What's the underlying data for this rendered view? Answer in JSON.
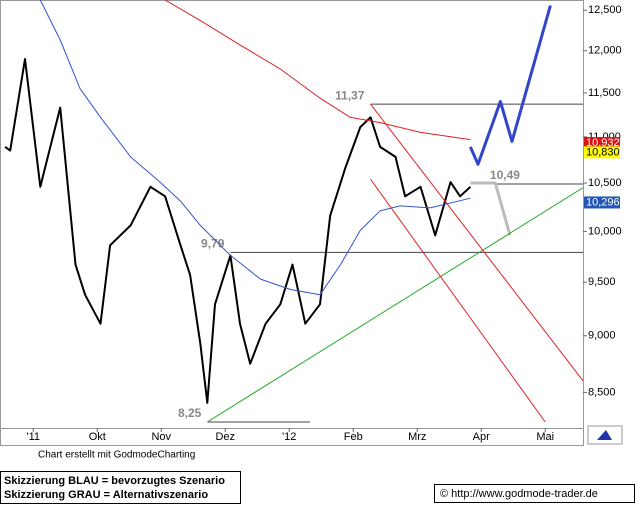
{
  "chart_data": {
    "type": "line",
    "log_y": true,
    "xlim": [
      -0.52,
      8.59
    ],
    "ylim": [
      8.2,
      12.63
    ],
    "xticks": [
      {
        "value": 0,
        "label": "'11"
      },
      {
        "value": 1,
        "label": "Okt"
      },
      {
        "value": 2,
        "label": "Nov"
      },
      {
        "value": 3,
        "label": "Dez"
      },
      {
        "value": 4,
        "label": "'12"
      },
      {
        "value": 5,
        "label": "Feb"
      },
      {
        "value": 6,
        "label": "Mrz"
      },
      {
        "value": 7,
        "label": "Apr"
      },
      {
        "value": 8,
        "label": "Mai"
      }
    ],
    "yticks": [
      {
        "value": 8.5,
        "label": "8,500"
      },
      {
        "value": 9,
        "label": "9,000"
      },
      {
        "value": 9.5,
        "label": "9,500"
      },
      {
        "value": 10,
        "label": "10,000"
      },
      {
        "value": 10.5,
        "label": "10,500"
      },
      {
        "value": 11,
        "label": "11,000"
      },
      {
        "value": 11.5,
        "label": "11,500"
      },
      {
        "value": 12,
        "label": "12,000"
      },
      {
        "value": 12.5,
        "label": "12,500"
      }
    ],
    "series": [
      {
        "color": "#000000",
        "width": 2,
        "x": [
          -0.44,
          -0.36,
          -0.13,
          0.11,
          0.42,
          0.66,
          0.81,
          1.05,
          1.2,
          1.52,
          1.83,
          2.06,
          2.3,
          2.45,
          2.61,
          2.72,
          2.84,
          3.08,
          3.23,
          3.39,
          3.63,
          3.86,
          4.05,
          4.25,
          4.48,
          4.64,
          4.88,
          5.11,
          5.27,
          5.42,
          5.66,
          5.81,
          6.05,
          6.28,
          6.52,
          6.67,
          6.83
        ],
        "values": [
          10.89,
          10.85,
          11.9,
          10.46,
          11.33,
          9.67,
          9.38,
          9.11,
          9.86,
          10.06,
          10.46,
          10.36,
          9.86,
          9.57,
          8.93,
          8.41,
          9.29,
          9.76,
          9.11,
          8.75,
          9.11,
          9.29,
          9.67,
          9.11,
          9.29,
          10.16,
          10.67,
          11.11,
          11.22,
          10.89,
          10.78,
          10.36,
          10.46,
          9.96,
          10.51,
          10.36,
          10.46
        ]
      },
      {
        "color": "#3355cc",
        "width": 1,
        "x": [
          0.11,
          0.42,
          0.73,
          1.05,
          1.52,
          1.98,
          2.3,
          2.61,
          3.08,
          3.55,
          4.02,
          4.48,
          4.8,
          5.11,
          5.42,
          5.73,
          6.2,
          6.83
        ],
        "values": [
          12.63,
          12.13,
          11.55,
          11.22,
          10.78,
          10.51,
          10.31,
          10.06,
          9.76,
          9.53,
          9.43,
          9.38,
          9.67,
          10.01,
          10.21,
          10.26,
          10.24,
          10.34
        ]
      },
      {
        "color": "#dd2222",
        "width": 1,
        "x": [
          2.06,
          2.61,
          3.23,
          3.86,
          4.48,
          4.95,
          5.42,
          6.05,
          6.83
        ],
        "values": [
          12.63,
          12.37,
          12.07,
          11.78,
          11.44,
          11.22,
          11.16,
          11.05,
          10.97
        ]
      },
      {
        "color": "#3344cc",
        "width": 3,
        "x": [
          6.83,
          6.95,
          7.3,
          7.48,
          8.08
        ],
        "values": [
          10.89,
          10.7,
          11.4,
          10.95,
          12.56
        ]
      },
      {
        "color": "#bbbbbb",
        "width": 3,
        "x": [
          6.83,
          7.22,
          7.45
        ],
        "values": [
          10.5,
          10.5,
          9.96
        ]
      },
      {
        "color": "#22aa22",
        "width": 1,
        "x": [
          2.72,
          8.59
        ],
        "values": [
          8.25,
          10.45
        ]
      },
      {
        "color": "#dd2222",
        "width": 1,
        "x": [
          5.27,
          8.59
        ],
        "values": [
          11.37,
          8.6
        ]
      },
      {
        "color": "#dd2222",
        "width": 1,
        "x": [
          5.27,
          8.0
        ],
        "values": [
          10.54,
          8.25
        ]
      }
    ],
    "levels": [
      {
        "value": 11.37,
        "label": "11,37",
        "from": 5.27
      },
      {
        "value": 9.79,
        "label": "9,79",
        "from": 3.08
      },
      {
        "value": 10.49,
        "label": "10,49",
        "from": 6.98
      },
      {
        "value": 8.25,
        "label": "8,25",
        "from": 2.72
      }
    ],
    "price_tags": [
      {
        "value": 10.932,
        "label": "10,932",
        "color": "#dd1111",
        "text_color": "#ffffff"
      },
      {
        "value": 10.83,
        "label": "10,830",
        "color": "#ffff00",
        "text_color": "#000000"
      },
      {
        "value": 10.296,
        "label": "10,296",
        "color": "#2255bb",
        "text_color": "#ffffff"
      }
    ],
    "credit": "Chart erstellt mit GodmodeCharting",
    "notes": [
      "Skizzierung BLAU = bevorzugtes Szenario",
      "Skizzierung GRAU = Alternativszenario"
    ],
    "source": "© http://www.godmode-trader.de"
  }
}
